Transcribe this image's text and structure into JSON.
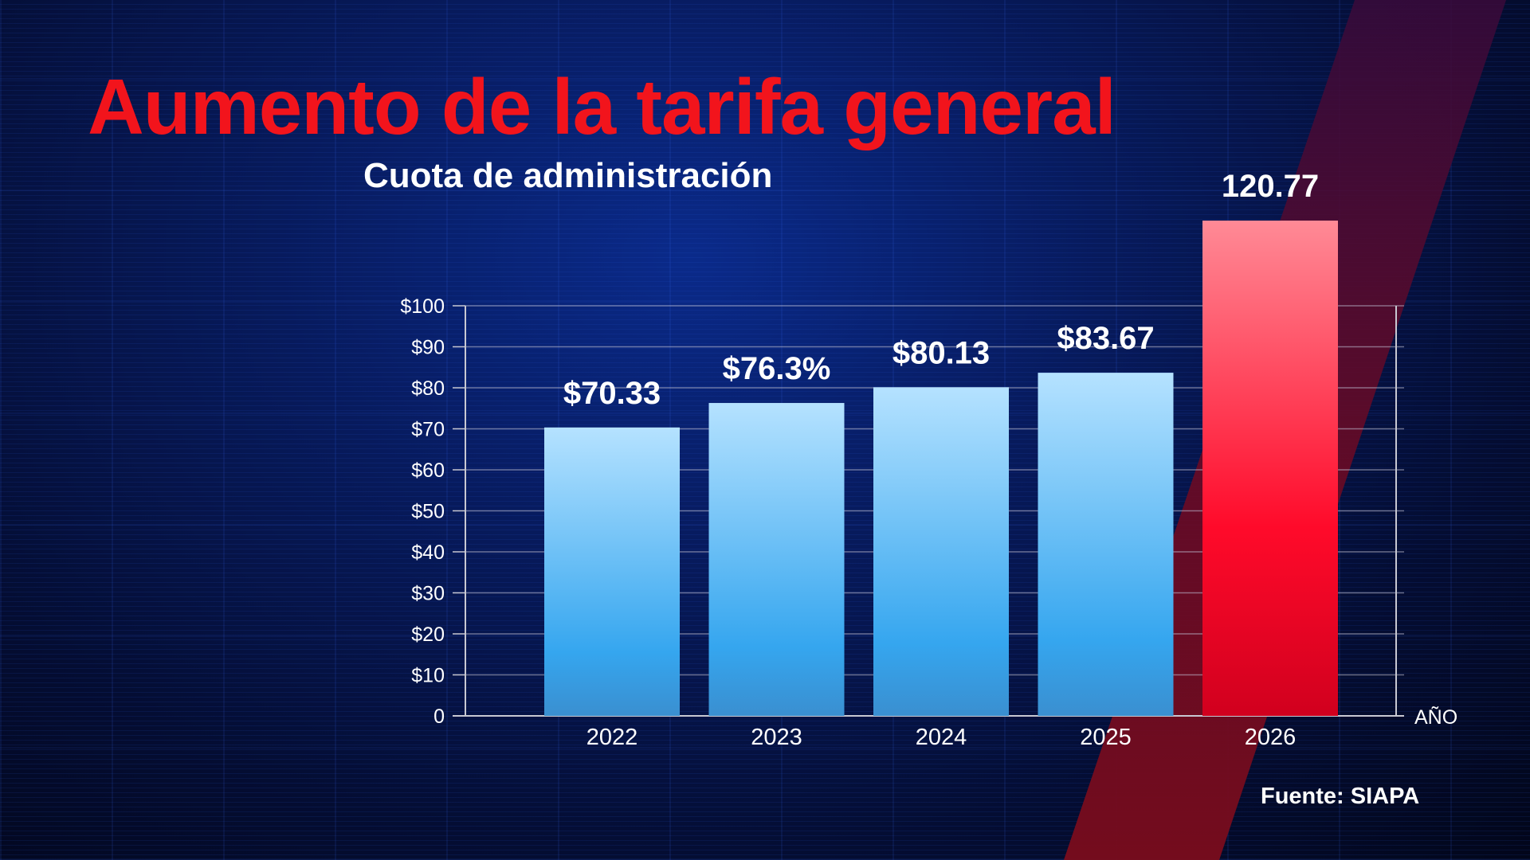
{
  "title": "Aumento de la tarifa general",
  "source": "Fuente: SIAPA",
  "colors": {
    "title": "#f2141c",
    "bar_blue_top": "#b5e2ff",
    "bar_blue_bottom": "#35a6ef",
    "bar_red_top": "#ff8a96",
    "bar_red_bottom": "#d1001e"
  },
  "chart_data": {
    "type": "bar",
    "title": "Cuota de administración",
    "xlabel": "AÑO",
    "ylabel": "",
    "categories": [
      "2022",
      "2023",
      "2024",
      "2025",
      "2026"
    ],
    "values": [
      70.33,
      76.3,
      80.13,
      83.67,
      120.77
    ],
    "data_labels": [
      "$70.33",
      "$76.3%",
      "$80.13",
      "$83.67",
      "120.77"
    ],
    "highlight_index": 4,
    "ylim": [
      0,
      100
    ],
    "yticks": [
      "0",
      "$10",
      "$20",
      "$30",
      "$40",
      "$50",
      "$60",
      "$70",
      "$80",
      "$90",
      "$100"
    ],
    "grid": true,
    "legend": "none"
  }
}
